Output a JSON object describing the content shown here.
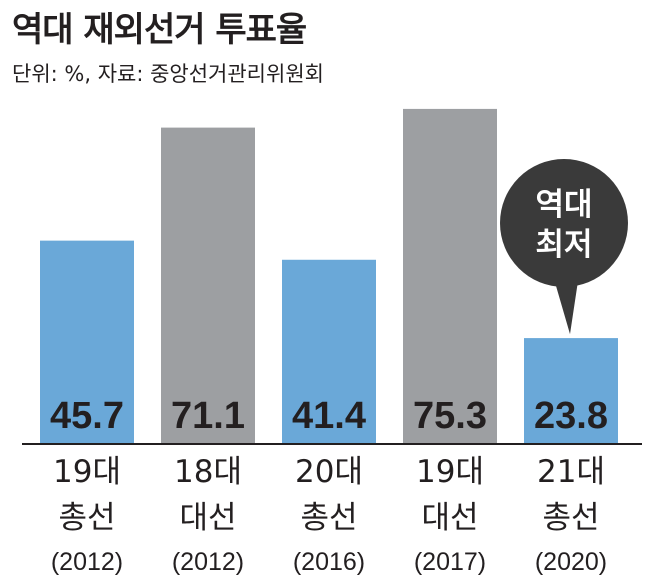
{
  "title": "역대 재외선거 투표율",
  "subtitle": "단위: %, 자료: 중앙선거관리위원회",
  "colors": {
    "legislative": "#6aa8d8",
    "presidential": "#9d9fa2",
    "callout": "#3a3a3a",
    "axis": "#231f20"
  },
  "chart_data": {
    "type": "bar",
    "ylim": [
      0,
      80
    ],
    "categories": [
      {
        "line1": "19대",
        "line2": "총선",
        "year": "(2012)"
      },
      {
        "line1": "18대",
        "line2": "대선",
        "year": "(2012)"
      },
      {
        "line1": "20대",
        "line2": "총선",
        "year": "(2016)"
      },
      {
        "line1": "19대",
        "line2": "대선",
        "year": "(2017)"
      },
      {
        "line1": "21대",
        "line2": "총선",
        "year": "(2020)"
      }
    ],
    "values": [
      45.7,
      71.1,
      41.4,
      75.3,
      23.8
    ],
    "value_labels": [
      "45.7",
      "71.1",
      "41.4",
      "75.3",
      "23.8"
    ],
    "bar_kind": [
      "legislative",
      "presidential",
      "legislative",
      "presidential",
      "legislative"
    ],
    "annotation": {
      "target_index": 4,
      "line1": "역대",
      "line2": "최저"
    }
  }
}
